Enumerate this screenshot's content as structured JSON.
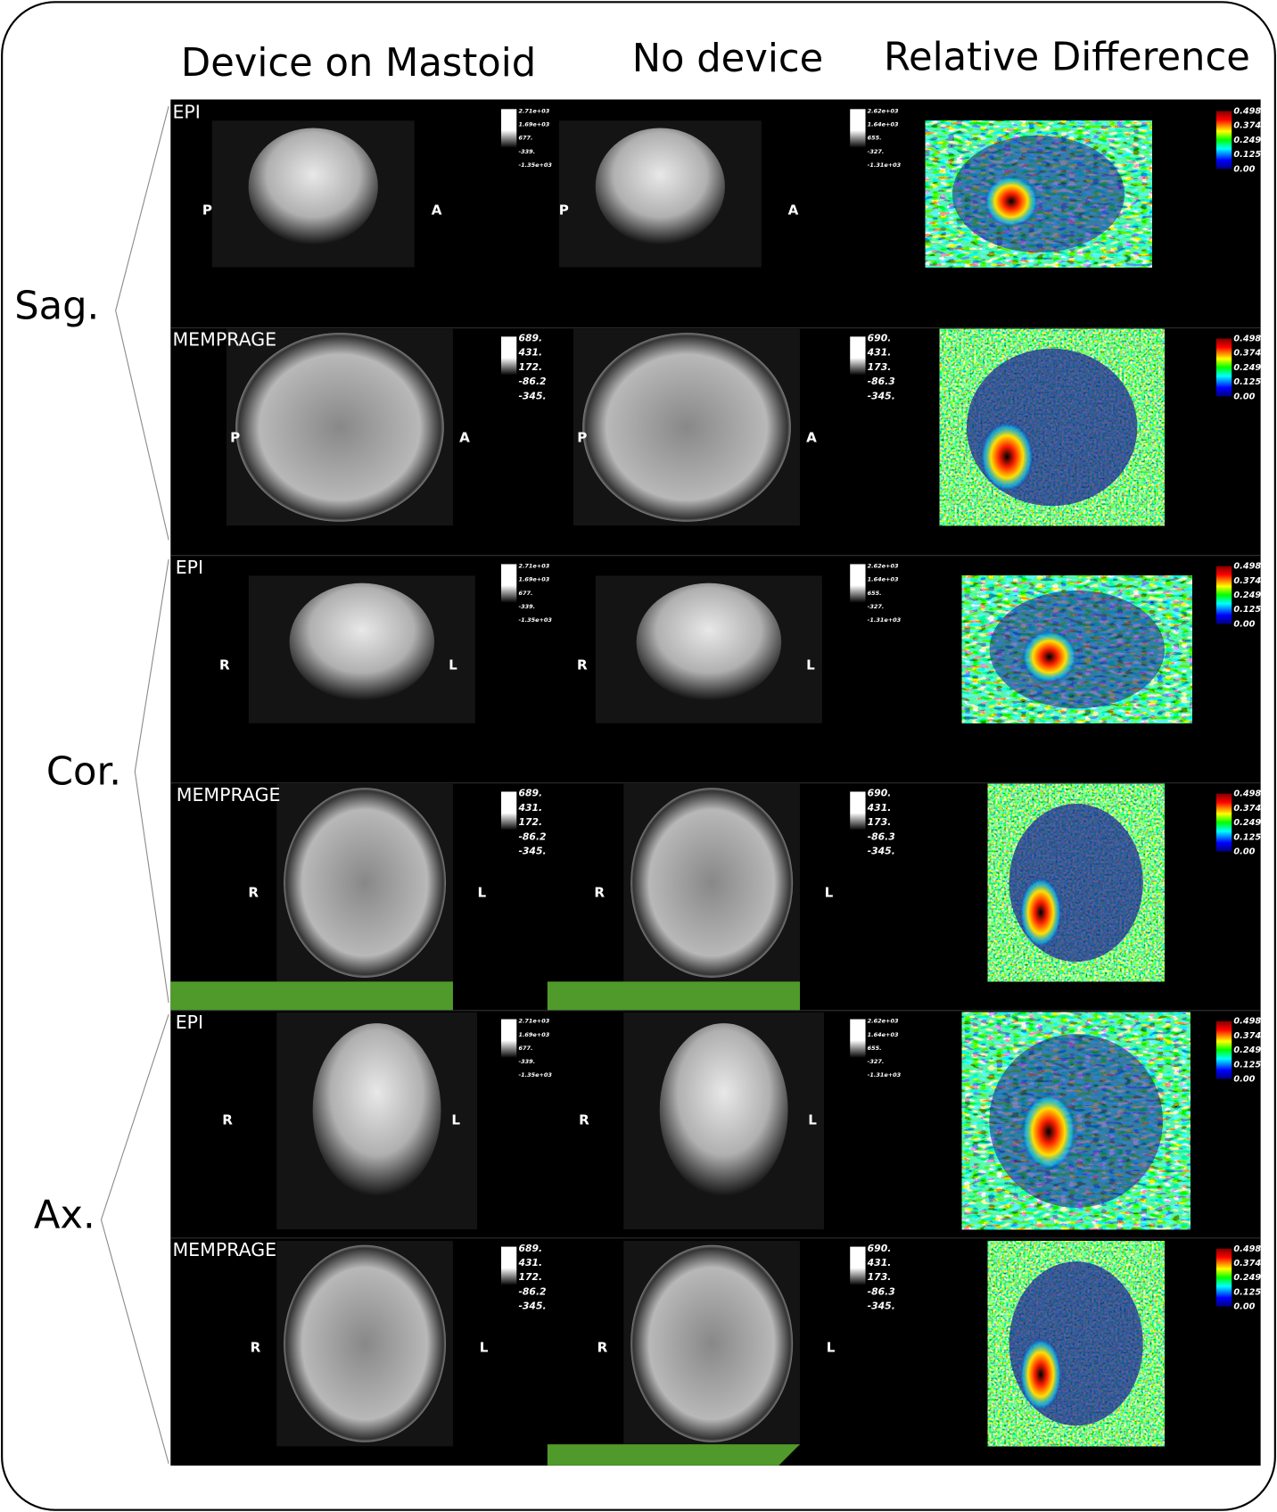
{
  "headers": [
    "Device on Mastoid",
    "No device",
    "Relative Difference"
  ],
  "groups": [
    {
      "label": "Sag."
    },
    {
      "label": "Cor."
    },
    {
      "label": "Ax."
    }
  ],
  "rows": [
    {
      "sequence": "EPI",
      "panels": [
        {
          "left": "P",
          "right": "A",
          "scale": [
            "2.71e+03",
            "1.69e+03",
            "677.",
            "-339.",
            "-1.35e+03"
          ]
        },
        {
          "left": "P",
          "right": "A",
          "scale": [
            "2.62e+03",
            "1.64e+03",
            "655.",
            "-327.",
            "-1.31e+03"
          ]
        },
        {
          "scale": [
            "0.498",
            "0.374",
            "0.249",
            "0.125",
            "0.00"
          ]
        }
      ]
    },
    {
      "sequence": "MEMPRAGE",
      "panels": [
        {
          "left": "P",
          "right": "A",
          "scale": [
            "689.",
            "431.",
            "172.",
            "-86.2",
            "-345."
          ]
        },
        {
          "left": "P",
          "right": "A",
          "scale": [
            "690.",
            "431.",
            "173.",
            "-86.3",
            "-345."
          ]
        },
        {
          "scale": [
            "0.498",
            "0.374",
            "0.249",
            "0.125",
            "0.00"
          ]
        }
      ]
    },
    {
      "sequence": "EPI",
      "panels": [
        {
          "left": "R",
          "right": "L",
          "scale": [
            "2.71e+03",
            "1.69e+03",
            "677.",
            "-339.",
            "-1.35e+03"
          ]
        },
        {
          "left": "R",
          "right": "L",
          "scale": [
            "2.62e+03",
            "1.64e+03",
            "655.",
            "-327.",
            "-1.31e+03"
          ]
        },
        {
          "scale": [
            "0.498",
            "0.374",
            "0.249",
            "0.125",
            "0.00"
          ]
        }
      ]
    },
    {
      "sequence": "MEMPRAGE",
      "panels": [
        {
          "left": "R",
          "right": "L",
          "scale": [
            "689.",
            "431.",
            "172.",
            "-86.2",
            "-345."
          ]
        },
        {
          "left": "R",
          "right": "L",
          "scale": [
            "690.",
            "431.",
            "173.",
            "-86.3",
            "-345."
          ]
        },
        {
          "scale": [
            "0.498",
            "0.374",
            "0.249",
            "0.125",
            "0.00"
          ]
        }
      ]
    },
    {
      "sequence": "EPI",
      "panels": [
        {
          "left": "R",
          "right": "L",
          "scale": [
            "2.71e+03",
            "1.69e+03",
            "677.",
            "-339.",
            "-1.35e+03"
          ]
        },
        {
          "left": "R",
          "right": "L",
          "scale": [
            "2.62e+03",
            "1.64e+03",
            "655.",
            "-327.",
            "-1.31e+03"
          ]
        },
        {
          "scale": [
            "0.498",
            "0.374",
            "0.249",
            "0.125",
            "0.00"
          ]
        }
      ]
    },
    {
      "sequence": "MEMPRAGE",
      "panels": [
        {
          "left": "R",
          "right": "L",
          "scale": [
            "689.",
            "431.",
            "172.",
            "-86.2",
            "-345."
          ]
        },
        {
          "left": "R",
          "right": "L",
          "scale": [
            "690.",
            "431.",
            "173.",
            "-86.3",
            "-345."
          ]
        },
        {
          "scale": [
            "0.498",
            "0.374",
            "0.249",
            "0.125",
            "0.00"
          ]
        }
      ]
    }
  ]
}
